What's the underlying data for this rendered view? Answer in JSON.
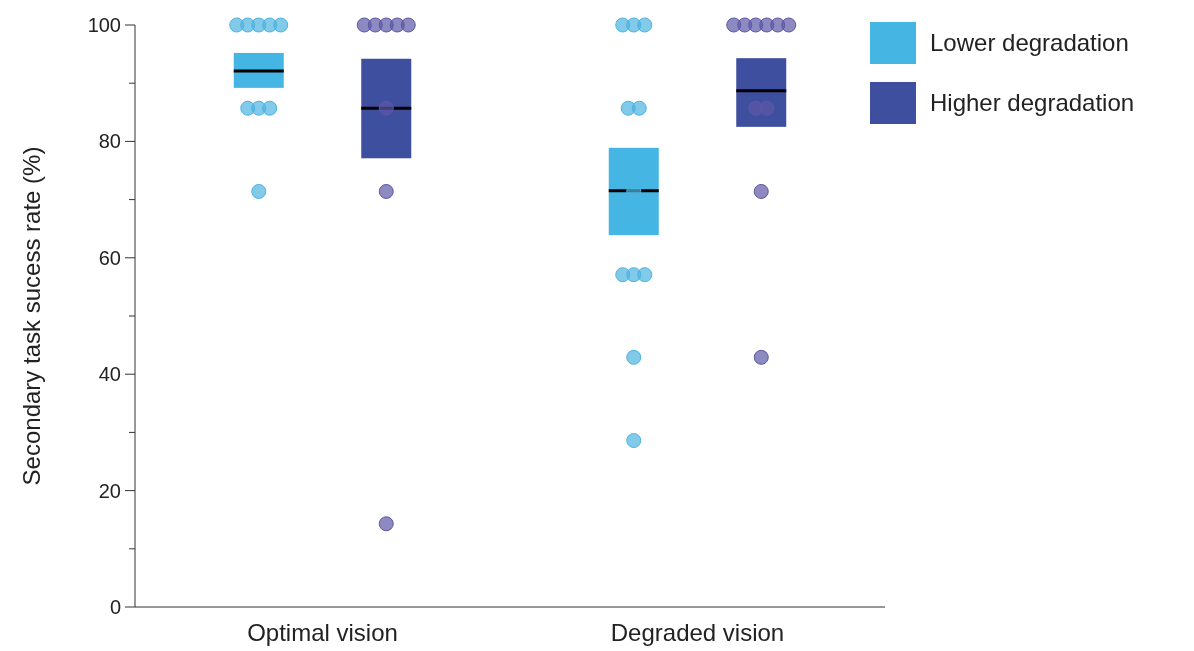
{
  "chart_data": {
    "type": "box",
    "ylabel": "Secondary task sucess rate (%)",
    "categories": [
      "Optimal vision",
      "Degraded vision"
    ],
    "ylim": [
      0,
      100
    ],
    "yticks": [
      0,
      {
        "value": 10,
        "label": null
      },
      20,
      {
        "value": 30,
        "label": null
      },
      40,
      {
        "value": 50,
        "label": null
      },
      60,
      {
        "value": 70,
        "label": null
      },
      80,
      {
        "value": 90,
        "label": null
      },
      100
    ],
    "legend": "top right",
    "grid": false,
    "series": [
      {
        "name": "Lower degradation",
        "color": "#45b5e3",
        "boxes": [
          {
            "low": 89.2,
            "q1": 89.2,
            "median": 92.1,
            "q3": 95.2,
            "high": 95.2
          },
          {
            "low": 63.9,
            "q1": 63.9,
            "median": 71.5,
            "q3": 78.9,
            "high": 78.9
          }
        ]
      },
      {
        "name": "Higher degradation",
        "color": "#3f4f9f",
        "boxes": [
          {
            "low": 77.1,
            "q1": 77.1,
            "median": 85.7,
            "q3": 94.2,
            "high": 94.2
          },
          {
            "low": 82.5,
            "q1": 82.5,
            "median": 88.7,
            "q3": 94.3,
            "high": 94.3
          }
        ]
      },
      {
        "type": "scatter",
        "color": "#4db3e0",
        "x": [
          "Optimal vision",
          "Optimal vision",
          "Optimal vision",
          "Optimal vision",
          "Optimal vision",
          "Optimal vision",
          "Optimal vision",
          "Optimal vision",
          "Optimal vision",
          "Degraded vision",
          "Degraded vision",
          "Degraded vision",
          "Degraded vision",
          "Degraded vision",
          "Degraded vision",
          "Degraded vision",
          "Degraded vision",
          "Degraded vision",
          "Degraded vision",
          "Degraded vision"
        ],
        "values": [
          100,
          100,
          100,
          100,
          100,
          85.7,
          85.7,
          85.7,
          71.4,
          100,
          100,
          100,
          85.7,
          85.7,
          71.4,
          57.1,
          57.1,
          57.1,
          42.9,
          28.6
        ]
      },
      {
        "type": "scatter",
        "color": "#5c57a6",
        "x": [
          "Optimal vision",
          "Optimal vision",
          "Optimal vision",
          "Optimal vision",
          "Optimal vision",
          "Optimal vision",
          "Optimal vision",
          "Optimal vision",
          "Degraded vision",
          "Degraded vision",
          "Degraded vision",
          "Degraded vision",
          "Degraded vision",
          "Degraded vision",
          "Degraded vision",
          "Degraded vision",
          "Degraded vision",
          "Degraded vision"
        ],
        "values": [
          100,
          100,
          100,
          100,
          100,
          85.7,
          71.4,
          14.3,
          100,
          100,
          100,
          100,
          100,
          100,
          85.7,
          85.7,
          71.4,
          42.9
        ]
      }
    ]
  }
}
